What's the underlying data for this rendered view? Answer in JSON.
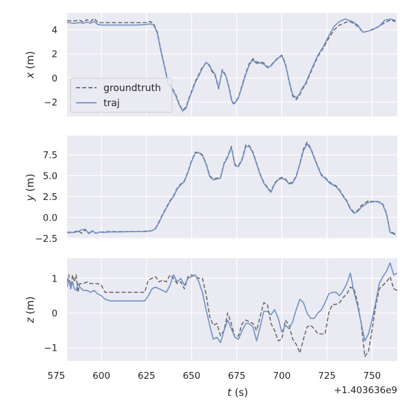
{
  "chart_data": [
    {
      "type": "line",
      "ylabel_var": "x",
      "ylabel_unit": " (m)",
      "xlim": [
        581,
        764
      ],
      "ylim": [
        -3.2,
        5.4
      ],
      "yticks": [
        -2,
        0,
        2,
        4
      ],
      "ytick_labels": [
        "−2",
        "0",
        "2",
        "4"
      ],
      "legend": {
        "position": "left",
        "entries": [
          "groundtruth",
          "traj"
        ]
      },
      "series": [
        {
          "name": "groundtruth",
          "style": "dashed",
          "color": "#6b6b6b",
          "x": [
            581,
            585,
            588,
            590,
            592,
            594,
            596,
            598,
            600,
            602,
            610,
            620,
            625,
            627,
            629,
            631,
            633,
            635,
            637,
            639,
            641,
            643,
            645,
            647,
            648,
            650,
            652,
            654,
            656,
            658,
            660,
            661,
            663,
            665,
            667,
            669,
            671,
            672,
            673,
            674,
            676,
            678,
            680,
            682,
            684,
            686,
            688,
            690,
            692,
            694,
            696,
            698,
            700,
            702,
            704,
            706,
            708,
            710,
            711,
            713,
            715,
            717,
            720,
            723,
            726,
            729,
            732,
            735,
            737,
            739,
            742,
            745,
            748,
            751,
            754,
            757,
            760,
            763
          ],
          "y": [
            4.75,
            4.75,
            4.8,
            4.65,
            4.85,
            4.7,
            4.95,
            4.6,
            4.6,
            4.6,
            4.6,
            4.6,
            4.6,
            4.7,
            4.5,
            3.8,
            2.3,
            1.0,
            -0.4,
            -0.8,
            -1.3,
            -2.1,
            -2.7,
            -2.4,
            -1.9,
            -1.1,
            -0.3,
            0.3,
            0.9,
            1.25,
            1.0,
            0.6,
            0.2,
            -0.9,
            0.7,
            0.2,
            -0.9,
            -1.7,
            -2.1,
            -2.05,
            -1.6,
            -0.6,
            0.4,
            1.2,
            1.6,
            1.3,
            1.35,
            1.25,
            0.9,
            1.05,
            1.4,
            1.7,
            1.9,
            1.2,
            -0.3,
            -1.5,
            -1.8,
            -1.4,
            -1.0,
            -0.6,
            0.1,
            0.8,
            1.8,
            2.5,
            3.3,
            4.0,
            4.4,
            4.6,
            4.7,
            4.6,
            4.3,
            3.8,
            3.9,
            4.1,
            4.3,
            4.6,
            4.8,
            4.7
          ]
        },
        {
          "name": "traj",
          "style": "solid",
          "color": "#6d8fc6",
          "x": [
            581,
            585,
            588,
            590,
            592,
            594,
            596,
            598,
            600,
            602,
            610,
            620,
            625,
            627,
            629,
            631,
            633,
            635,
            637,
            639,
            641,
            643,
            645,
            647,
            648,
            650,
            652,
            654,
            656,
            658,
            660,
            661,
            663,
            665,
            667,
            669,
            671,
            672,
            673,
            674,
            676,
            678,
            680,
            682,
            684,
            686,
            688,
            690,
            692,
            694,
            696,
            698,
            700,
            702,
            704,
            706,
            708,
            710,
            711,
            713,
            715,
            717,
            720,
            723,
            726,
            729,
            732,
            735,
            737,
            739,
            742,
            745,
            748,
            751,
            754,
            757,
            760,
            763
          ],
          "y": [
            4.6,
            4.55,
            4.6,
            4.55,
            4.65,
            4.55,
            4.7,
            4.45,
            4.4,
            4.4,
            4.4,
            4.4,
            4.45,
            4.5,
            4.4,
            3.7,
            2.2,
            0.9,
            -0.5,
            -0.9,
            -1.4,
            -2.2,
            -2.75,
            -2.5,
            -2.0,
            -1.2,
            -0.4,
            0.2,
            0.8,
            1.3,
            1.05,
            0.7,
            0.3,
            -0.8,
            0.6,
            0.15,
            -1.0,
            -1.8,
            -2.15,
            -2.1,
            -1.65,
            -0.7,
            0.3,
            1.1,
            1.5,
            1.2,
            1.25,
            1.15,
            0.85,
            1.0,
            1.35,
            1.65,
            1.85,
            1.1,
            -0.2,
            -1.4,
            -1.65,
            -1.3,
            -0.9,
            -0.5,
            0.2,
            0.9,
            1.9,
            2.6,
            3.5,
            4.3,
            4.7,
            4.9,
            4.8,
            4.7,
            4.4,
            3.8,
            3.9,
            4.05,
            4.3,
            4.8,
            4.9,
            4.8
          ]
        }
      ]
    },
    {
      "type": "line",
      "ylabel_var": "y",
      "ylabel_unit": " (m)",
      "xlim": [
        581,
        764
      ],
      "ylim": [
        -2.6,
        9.8
      ],
      "yticks": [
        -2.5,
        0.0,
        2.5,
        5.0,
        7.5
      ],
      "ytick_labels": [
        "−2.5",
        "0.0",
        "2.5",
        "5.0",
        "7.5"
      ],
      "series": [
        {
          "name": "groundtruth",
          "style": "dashed",
          "color": "#6b6b6b",
          "x": [
            581,
            585,
            587,
            589,
            591,
            593,
            595,
            597,
            599,
            601,
            605,
            610,
            620,
            625,
            628,
            630,
            632,
            634,
            636,
            638,
            640,
            642,
            644,
            646,
            648,
            650,
            652,
            654,
            656,
            658,
            660,
            662,
            664,
            666,
            668,
            670,
            672,
            674,
            676,
            678,
            680,
            682,
            684,
            686,
            688,
            690,
            692,
            694,
            696,
            698,
            700,
            702,
            704,
            706,
            708,
            710,
            712,
            714,
            716,
            718,
            720,
            722,
            724,
            726,
            728,
            730,
            732,
            734,
            736,
            738,
            740,
            742,
            744,
            746,
            748,
            750,
            752,
            754,
            756,
            758,
            760,
            763
          ],
          "y": [
            -1.8,
            -1.75,
            -1.6,
            -1.9,
            -1.5,
            -1.85,
            -1.7,
            -1.9,
            -1.8,
            -1.75,
            -1.7,
            -1.7,
            -1.7,
            -1.65,
            -1.6,
            -1.3,
            -0.5,
            0.4,
            1.2,
            2.0,
            2.6,
            3.5,
            4.0,
            4.4,
            5.5,
            6.8,
            7.8,
            7.8,
            7.5,
            6.5,
            5.0,
            4.6,
            4.7,
            4.8,
            6.5,
            7.3,
            8.5,
            6.3,
            6.2,
            7.0,
            8.7,
            8.6,
            7.8,
            6.5,
            5.2,
            4.2,
            3.6,
            3.1,
            4.1,
            4.6,
            4.8,
            4.6,
            4.1,
            4.2,
            5.0,
            6.5,
            8.2,
            9.0,
            8.3,
            7.2,
            6.1,
            5.1,
            4.8,
            4.3,
            4.0,
            3.8,
            3.3,
            2.6,
            2.0,
            1.1,
            0.6,
            0.8,
            1.4,
            1.7,
            2.0,
            1.9,
            1.95,
            1.85,
            1.6,
            0.5,
            -1.7,
            -2.0
          ]
        },
        {
          "name": "traj",
          "style": "solid",
          "color": "#6d8fc6",
          "x": [
            581,
            585,
            587,
            589,
            591,
            593,
            595,
            597,
            599,
            601,
            605,
            610,
            620,
            625,
            628,
            630,
            632,
            634,
            636,
            638,
            640,
            642,
            644,
            646,
            648,
            650,
            652,
            654,
            656,
            658,
            660,
            662,
            664,
            666,
            668,
            670,
            672,
            674,
            676,
            678,
            680,
            682,
            684,
            686,
            688,
            690,
            692,
            694,
            696,
            698,
            700,
            702,
            704,
            706,
            708,
            710,
            712,
            714,
            716,
            718,
            720,
            722,
            724,
            726,
            728,
            730,
            732,
            734,
            736,
            738,
            740,
            742,
            744,
            746,
            748,
            750,
            752,
            754,
            756,
            758,
            760,
            763
          ],
          "y": [
            -1.85,
            -1.8,
            -1.7,
            -1.5,
            -1.4,
            -1.95,
            -1.6,
            -1.9,
            -1.75,
            -1.8,
            -1.75,
            -1.75,
            -1.7,
            -1.7,
            -1.6,
            -1.35,
            -0.6,
            0.3,
            1.1,
            1.9,
            2.5,
            3.4,
            3.9,
            4.3,
            5.4,
            6.7,
            7.7,
            7.75,
            7.4,
            6.4,
            4.9,
            4.5,
            4.6,
            4.7,
            6.4,
            7.2,
            8.4,
            6.2,
            6.1,
            6.9,
            8.5,
            8.5,
            7.7,
            6.4,
            5.1,
            4.1,
            3.5,
            3.0,
            4.0,
            4.5,
            4.7,
            4.5,
            4.0,
            4.1,
            4.9,
            6.4,
            8.0,
            8.8,
            8.2,
            7.1,
            6.0,
            5.0,
            4.7,
            4.2,
            3.9,
            3.7,
            3.2,
            2.5,
            1.9,
            1.0,
            0.5,
            0.7,
            1.2,
            1.5,
            1.8,
            1.85,
            1.9,
            1.8,
            1.5,
            0.4,
            -1.8,
            -2.1
          ]
        }
      ]
    },
    {
      "type": "line",
      "ylabel_var": "z",
      "ylabel_unit": " (m)",
      "xlim": [
        581,
        764
      ],
      "ylim": [
        -1.38,
        1.58
      ],
      "yticks": [
        -1,
        0,
        1
      ],
      "ytick_labels": [
        "−1",
        "0",
        "1"
      ],
      "xticks": [
        575,
        600,
        625,
        650,
        675,
        700,
        725,
        750
      ],
      "xtick_labels": [
        "575",
        "600",
        "625",
        "650",
        "675",
        "700",
        "725",
        "750"
      ],
      "xlabel_var": "t",
      "xlabel_unit": " (s)",
      "offset_label": "+1.403636e9",
      "series": [
        {
          "name": "groundtruth",
          "style": "dashed",
          "color": "#6b6b6b",
          "x": [
            581,
            582,
            583,
            584,
            585,
            586,
            587,
            588,
            590,
            592,
            594,
            596,
            598,
            600,
            602,
            605,
            610,
            615,
            620,
            624,
            626,
            628,
            630,
            632,
            634,
            636,
            638,
            640,
            642,
            644,
            646,
            648,
            650,
            652,
            654,
            656,
            658,
            660,
            662,
            664,
            666,
            668,
            670,
            672,
            674,
            676,
            678,
            680,
            682,
            684,
            686,
            688,
            690,
            692,
            694,
            696,
            698,
            700,
            702,
            704,
            706,
            708,
            710,
            712,
            714,
            716,
            718,
            720,
            722,
            724,
            726,
            728,
            730,
            732,
            734,
            736,
            738,
            740,
            742,
            744,
            746,
            748,
            750,
            752,
            754,
            756,
            758,
            760,
            762,
            764
          ],
          "y": [
            0.9,
            1.1,
            0.7,
            1.1,
            0.9,
            1.1,
            0.6,
            0.85,
            0.85,
            0.9,
            0.85,
            0.85,
            0.85,
            0.8,
            0.6,
            0.6,
            0.6,
            0.6,
            0.6,
            0.6,
            0.95,
            1.0,
            1.05,
            0.9,
            0.95,
            0.9,
            1.1,
            1.0,
            0.85,
            0.9,
            0.7,
            1.05,
            1.1,
            1.05,
            1.0,
            1.0,
            0.55,
            -0.1,
            -0.35,
            -0.3,
            -0.65,
            -0.5,
            0.0,
            -0.3,
            -0.7,
            -0.65,
            -0.3,
            -0.2,
            -0.25,
            -0.3,
            -0.5,
            -0.1,
            0.3,
            0.25,
            -0.3,
            -0.5,
            -0.8,
            -0.75,
            -0.2,
            -0.35,
            -0.75,
            -0.9,
            -1.15,
            -0.75,
            -0.4,
            -0.35,
            -0.45,
            -0.6,
            -0.6,
            -0.6,
            0.0,
            0.25,
            0.25,
            0.3,
            0.45,
            0.55,
            0.75,
            0.7,
            0.3,
            -0.3,
            -1.25,
            -1.1,
            -0.5,
            0.2,
            0.7,
            0.8,
            0.9,
            1.05,
            0.7,
            0.65
          ]
        },
        {
          "name": "traj",
          "style": "solid",
          "color": "#6d8fc6",
          "x": [
            581,
            582,
            583,
            584,
            585,
            586,
            587,
            588,
            590,
            592,
            594,
            596,
            598,
            600,
            602,
            605,
            610,
            615,
            620,
            624,
            626,
            628,
            630,
            632,
            634,
            636,
            638,
            640,
            642,
            644,
            646,
            648,
            650,
            652,
            654,
            656,
            658,
            660,
            662,
            664,
            666,
            668,
            670,
            672,
            674,
            676,
            678,
            680,
            682,
            684,
            686,
            688,
            690,
            692,
            694,
            696,
            698,
            700,
            702,
            704,
            706,
            708,
            710,
            712,
            714,
            716,
            718,
            720,
            722,
            724,
            726,
            728,
            730,
            732,
            734,
            736,
            738,
            740,
            742,
            744,
            746,
            748,
            750,
            752,
            754,
            756,
            758,
            760,
            762,
            764
          ],
          "y": [
            0.75,
            0.95,
            0.7,
            0.9,
            0.7,
            0.65,
            0.85,
            0.75,
            0.65,
            0.65,
            0.6,
            0.65,
            0.55,
            0.5,
            0.4,
            0.35,
            0.35,
            0.35,
            0.35,
            0.35,
            0.5,
            0.7,
            0.75,
            0.7,
            0.65,
            0.6,
            0.8,
            1.1,
            0.9,
            1.0,
            0.8,
            1.0,
            1.05,
            1.1,
            0.9,
            0.6,
            0.1,
            -0.35,
            -0.75,
            -0.7,
            -0.85,
            -0.5,
            -0.2,
            -0.45,
            -0.7,
            -0.75,
            -0.5,
            -0.3,
            -0.3,
            -0.4,
            -0.8,
            -0.4,
            0.05,
            0.05,
            -0.05,
            0.1,
            -0.15,
            -0.55,
            -0.35,
            -0.45,
            -0.25,
            0.1,
            0.4,
            0.3,
            0.0,
            -0.15,
            -0.15,
            0.0,
            0.1,
            0.3,
            0.55,
            0.6,
            0.6,
            0.5,
            0.65,
            0.85,
            1.15,
            0.6,
            0.2,
            -0.3,
            -0.8,
            -0.6,
            -0.2,
            0.3,
            0.85,
            1.05,
            1.2,
            1.45,
            1.1,
            1.15
          ]
        }
      ]
    }
  ]
}
